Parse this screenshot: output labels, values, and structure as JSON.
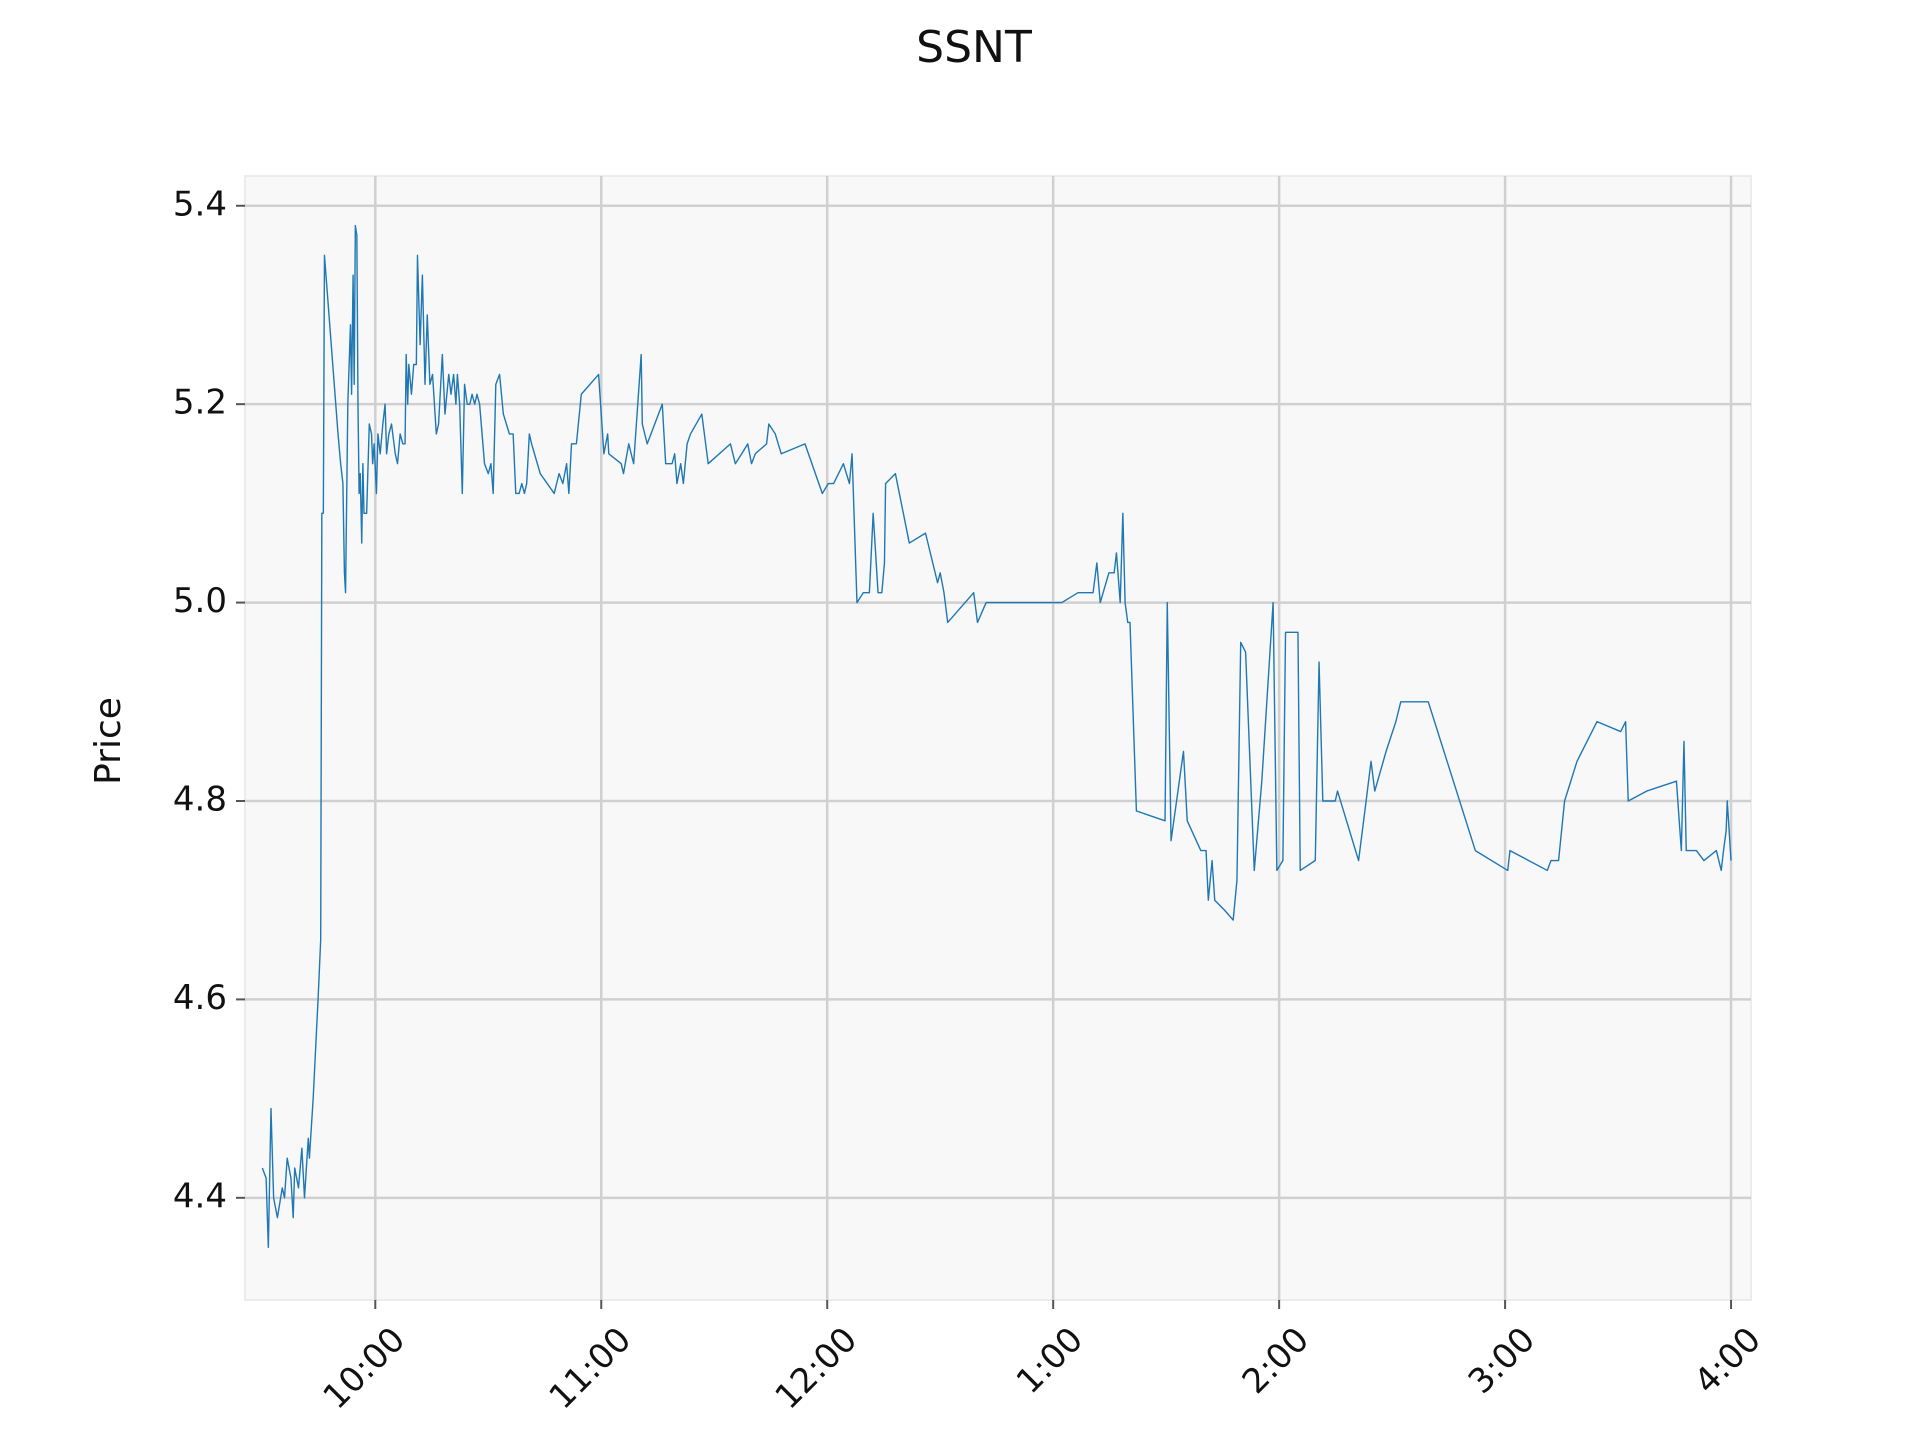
{
  "chart_data": {
    "type": "line",
    "title": "SSNT",
    "ylabel": "Price",
    "color": "#1f77b4",
    "grid": true,
    "xlim": [
      565.4,
      965.3
    ],
    "ylim": [
      4.297,
      5.43
    ],
    "xticks": [
      {
        "value": 600,
        "label": "10:00"
      },
      {
        "value": 660,
        "label": "11:00"
      },
      {
        "value": 720,
        "label": "12:00"
      },
      {
        "value": 780,
        "label": "1:00"
      },
      {
        "value": 840,
        "label": "2:00"
      },
      {
        "value": 900,
        "label": "3:00"
      },
      {
        "value": 960,
        "label": "4:00"
      }
    ],
    "yticks": [
      4.4,
      4.6,
      4.8,
      {
        "value": 5,
        "label": "5.0"
      },
      5.2,
      5.4
    ],
    "x": [
      570.0,
      571.0,
      571.6,
      572.3,
      573.0,
      574.0,
      575.3,
      575.9,
      576.6,
      577.6,
      578.2,
      578.6,
      579.6,
      580.5,
      581.2,
      582.2,
      582.5,
      583.5,
      584.8,
      585.5,
      585.8,
      586.2,
      586.5,
      588.1,
      590.1,
      590.8,
      591.4,
      591.8,
      592.1,
      592.7,
      593.4,
      593.7,
      594.1,
      594.4,
      594.7,
      595.1,
      595.4,
      595.7,
      596.0,
      596.4,
      596.7,
      597.0,
      597.7,
      598.4,
      599.0,
      599.3,
      599.7,
      600.3,
      600.7,
      601.3,
      602.0,
      602.6,
      603.0,
      603.6,
      604.3,
      605.3,
      605.9,
      606.6,
      607.3,
      607.9,
      608.2,
      608.6,
      608.9,
      609.6,
      610.2,
      610.9,
      611.2,
      611.9,
      612.5,
      613.2,
      613.8,
      614.5,
      615.2,
      616.2,
      616.8,
      617.8,
      618.5,
      619.5,
      620.1,
      620.8,
      621.4,
      621.8,
      622.4,
      623.1,
      623.7,
      624.4,
      625.1,
      625.7,
      626.4,
      627.0,
      627.7,
      629.0,
      630.0,
      630.7,
      631.3,
      632.0,
      633.0,
      634.0,
      635.6,
      636.6,
      637.3,
      638.2,
      638.9,
      639.6,
      640.2,
      640.9,
      641.5,
      643.8,
      647.5,
      648.8,
      649.8,
      650.8,
      651.4,
      652.1,
      653.4,
      654.7,
      659.3,
      660.7,
      661.7,
      662.0,
      665.3,
      665.9,
      667.3,
      668.6,
      670.6,
      670.9,
      672.2,
      676.2,
      677.1,
      678.8,
      679.5,
      680.1,
      681.1,
      681.8,
      682.8,
      683.7,
      686.7,
      688.4,
      694.3,
      695.6,
      697.3,
      698.9,
      699.9,
      700.9,
      703.9,
      704.5,
      706.2,
      707.8,
      714.1,
      718.7,
      720.3,
      721.7,
      724.3,
      725.9,
      726.6,
      727.9,
      729.6,
      731.2,
      732.2,
      733.5,
      734.5,
      735.2,
      735.5,
      738.1,
      741.8,
      746.1,
      749.3,
      750.0,
      751.0,
      752.0,
      758.9,
      759.9,
      762.2,
      782.3,
      786.6,
      790.6,
      791.6,
      792.5,
      794.8,
      796.2,
      796.8,
      797.8,
      798.5,
      799.1,
      799.8,
      800.4,
      802.1,
      809.7,
      810.3,
      811.3,
      814.6,
      815.6,
      819.2,
      820.6,
      821.2,
      822.2,
      822.9,
      825.5,
      827.8,
      828.8,
      829.8,
      831.1,
      833.4,
      835.4,
      838.4,
      839.4,
      841.0,
      841.7,
      845.0,
      845.6,
      849.6,
      850.6,
      851.6,
      854.9,
      855.5,
      861.1,
      863.1,
      864.4,
      865.4,
      868.4,
      871.0,
      872.3,
      879.6,
      892.1,
      900.7,
      901.3,
      911.2,
      912.2,
      914.2,
      915.8,
      919.1,
      924.4,
      930.7,
      932.0,
      932.7,
      937.6,
      945.5,
      946.8,
      947.5,
      948.1,
      950.8,
      952.8,
      956.1,
      957.4,
      958.0,
      958.7,
      959.0,
      960.0
    ],
    "values": [
      4.43,
      4.42,
      4.35,
      4.49,
      4.4,
      4.38,
      4.41,
      4.4,
      4.44,
      4.42,
      4.38,
      4.43,
      4.41,
      4.45,
      4.4,
      4.46,
      4.44,
      4.5,
      4.6,
      4.66,
      5.09,
      5.09,
      5.35,
      5.27,
      5.17,
      5.14,
      5.12,
      5.03,
      5.01,
      5.2,
      5.28,
      5.21,
      5.33,
      5.22,
      5.38,
      5.37,
      5.2,
      5.11,
      5.13,
      5.06,
      5.14,
      5.09,
      5.09,
      5.18,
      5.17,
      5.14,
      5.16,
      5.11,
      5.17,
      5.15,
      5.18,
      5.2,
      5.15,
      5.17,
      5.18,
      5.15,
      5.14,
      5.17,
      5.16,
      5.16,
      5.25,
      5.2,
      5.24,
      5.21,
      5.24,
      5.24,
      5.35,
      5.26,
      5.33,
      5.22,
      5.29,
      5.22,
      5.23,
      5.17,
      5.18,
      5.25,
      5.19,
      5.23,
      5.21,
      5.23,
      5.2,
      5.23,
      5.2,
      5.11,
      5.22,
      5.2,
      5.2,
      5.21,
      5.2,
      5.21,
      5.2,
      5.14,
      5.13,
      5.14,
      5.11,
      5.22,
      5.23,
      5.19,
      5.17,
      5.17,
      5.11,
      5.11,
      5.12,
      5.11,
      5.12,
      5.17,
      5.16,
      5.13,
      5.11,
      5.13,
      5.12,
      5.14,
      5.11,
      5.16,
      5.16,
      5.21,
      5.23,
      5.15,
      5.17,
      5.15,
      5.14,
      5.13,
      5.16,
      5.14,
      5.25,
      5.18,
      5.16,
      5.2,
      5.14,
      5.14,
      5.15,
      5.12,
      5.14,
      5.12,
      5.16,
      5.17,
      5.19,
      5.14,
      5.16,
      5.14,
      5.15,
      5.16,
      5.14,
      5.15,
      5.16,
      5.18,
      5.17,
      5.15,
      5.16,
      5.11,
      5.12,
      5.12,
      5.14,
      5.12,
      5.15,
      5.0,
      5.01,
      5.01,
      5.09,
      5.01,
      5.01,
      5.04,
      5.12,
      5.13,
      5.06,
      5.07,
      5.02,
      5.03,
      5.01,
      4.98,
      5.01,
      4.98,
      5.0,
      5.0,
      5.01,
      5.01,
      5.04,
      5.0,
      5.03,
      5.03,
      5.05,
      5.0,
      5.09,
      5.0,
      4.98,
      4.98,
      4.79,
      4.78,
      5.0,
      4.76,
      4.85,
      4.78,
      4.75,
      4.75,
      4.7,
      4.74,
      4.7,
      4.69,
      4.68,
      4.72,
      4.96,
      4.95,
      4.73,
      4.82,
      5.0,
      4.73,
      4.74,
      4.97,
      4.97,
      4.73,
      4.74,
      4.94,
      4.8,
      4.8,
      4.81,
      4.74,
      4.8,
      4.84,
      4.81,
      4.85,
      4.88,
      4.9,
      4.9,
      4.75,
      4.73,
      4.75,
      4.73,
      4.74,
      4.74,
      4.8,
      4.84,
      4.88,
      4.87,
      4.88,
      4.8,
      4.81,
      4.82,
      4.75,
      4.86,
      4.75,
      4.75,
      4.74,
      4.75,
      4.73,
      4.75,
      4.77,
      4.8,
      4.74
    ]
  }
}
